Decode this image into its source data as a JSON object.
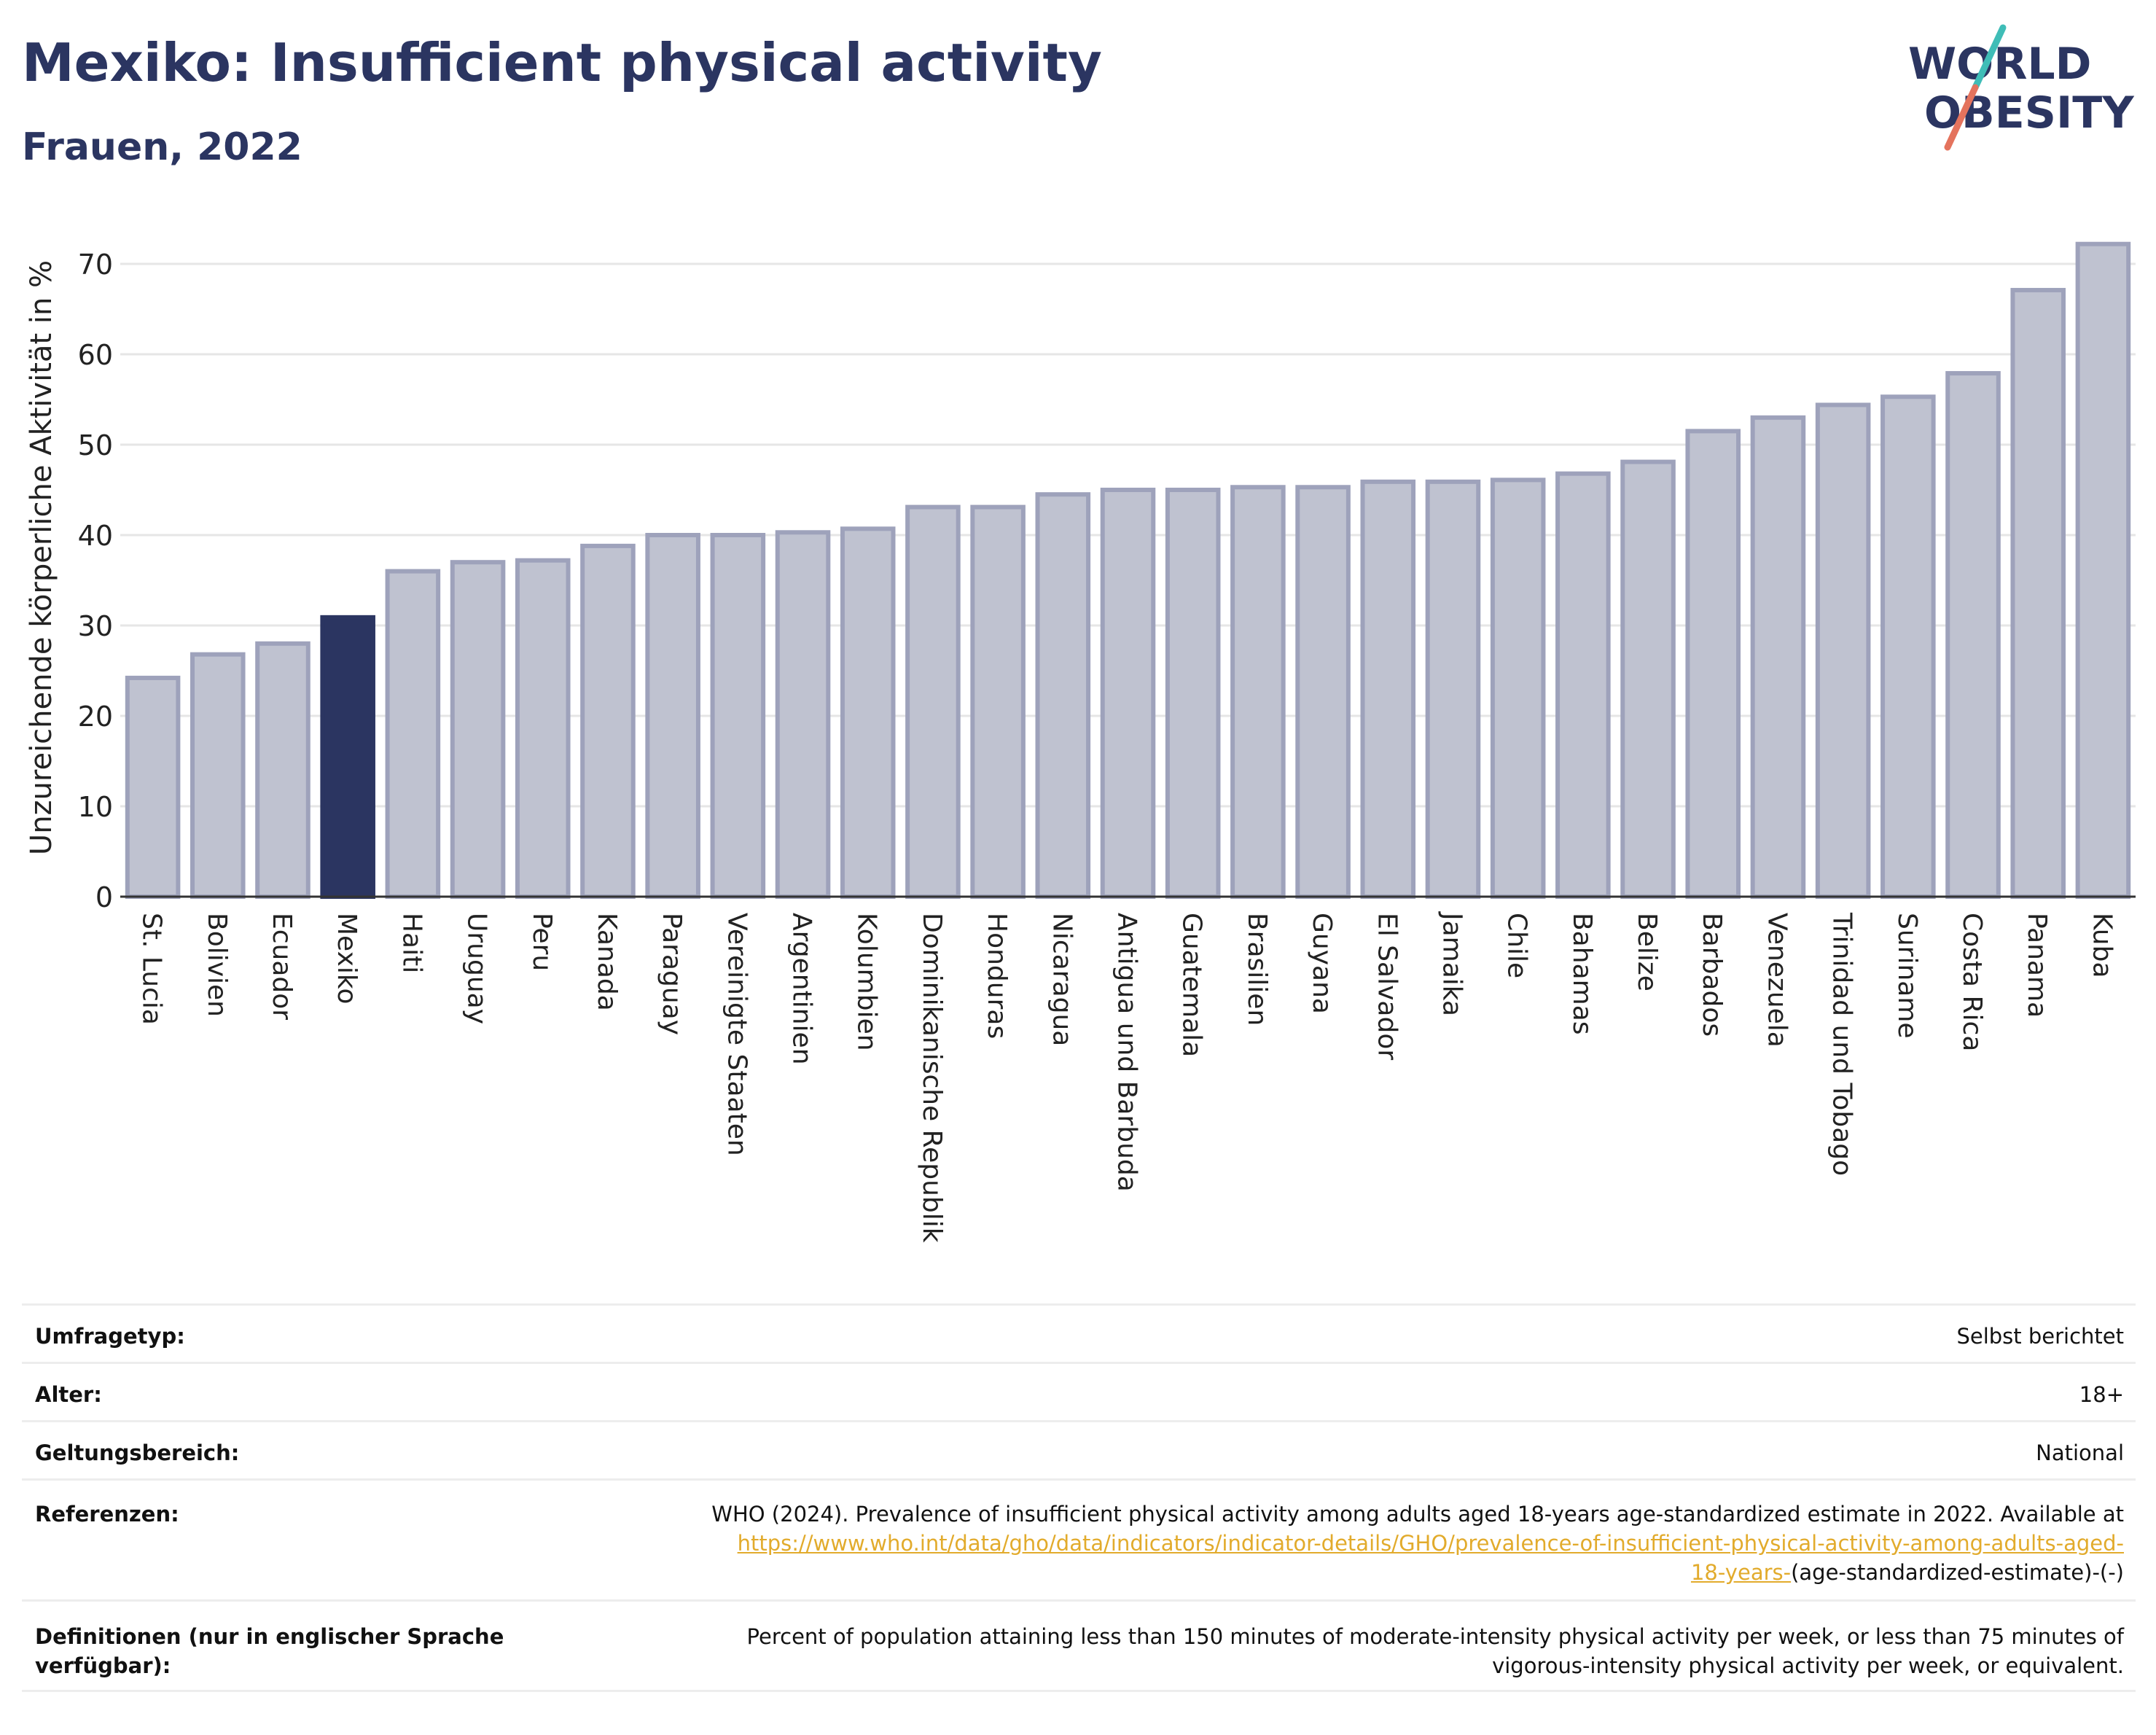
{
  "header": {
    "title": "Mexiko: Insufficient physical activity",
    "subtitle": "Frauen, 2022"
  },
  "logo": {
    "line1": "WORLD",
    "line2": "OBESITY",
    "colors": {
      "text": "#2b3561",
      "slash_teal": "#3fbdb7",
      "slash_coral": "#e4735d"
    }
  },
  "chart_data": {
    "type": "bar",
    "ylabel": "Unzureichende körperliche Aktivität in %",
    "xlabel": "",
    "ylim": [
      0,
      75
    ],
    "yticks": [
      0,
      10,
      20,
      30,
      40,
      50,
      60,
      70
    ],
    "grid": true,
    "highlight": "Mexiko",
    "colors": {
      "bar": "#bfc2d0",
      "bar_border": "#9ea2bb",
      "highlight": "#2b3561"
    },
    "categories": [
      "St. Lucia",
      "Bolivien",
      "Ecuador",
      "Mexiko",
      "Haiti",
      "Uruguay",
      "Peru",
      "Kanada",
      "Paraguay",
      "Vereinigte Staaten",
      "Argentinien",
      "Kolumbien",
      "Dominikanische Republik",
      "Honduras",
      "Nicaragua",
      "Antigua und Barbuda",
      "Guatemala",
      "Brasilien",
      "Guyana",
      "El Salvador",
      "Jamaika",
      "Chile",
      "Bahamas",
      "Belize",
      "Barbados",
      "Venezuela",
      "Trinidad und Tobago",
      "Suriname",
      "Costa Rica",
      "Panama",
      "Kuba"
    ],
    "values": [
      24.2,
      26.8,
      28.0,
      30.9,
      36.0,
      37.0,
      37.2,
      38.8,
      40.0,
      40.0,
      40.3,
      40.7,
      43.1,
      43.1,
      44.5,
      45.0,
      45.0,
      45.3,
      45.3,
      45.9,
      45.9,
      46.1,
      46.8,
      48.1,
      51.5,
      53.0,
      54.4,
      55.3,
      57.9,
      67.1,
      72.2
    ]
  },
  "info": {
    "rows": [
      {
        "label": "Umfragetyp:",
        "value": "Selbst berichtet"
      },
      {
        "label": "Alter:",
        "value": "18+"
      },
      {
        "label": "Geltungsbereich:",
        "value": "National"
      }
    ],
    "references": {
      "label": "Referenzen:",
      "text": "WHO (2024). Prevalence of insufficient physical activity among adults aged 18-years age-standardized estimate in 2022. Available at",
      "link_line1": "https://www.who.int/data/gho/data/indicators/indicator-details/GHO/prevalence-of-insufficient-physical-activity-among-adults-aged-",
      "link_line2": "18-years-",
      "suffix": "(age-standardized-estimate)-(-)"
    },
    "definitions": {
      "label_line1": "Definitionen (nur in englischer Sprache",
      "label_line2": "verfügbar):",
      "text_line1": "Percent of population attaining less than 150 minutes of moderate-intensity physical activity per week, or less than 75 minutes of",
      "text_line2": "vigorous-intensity physical activity per week, or equivalent."
    }
  }
}
